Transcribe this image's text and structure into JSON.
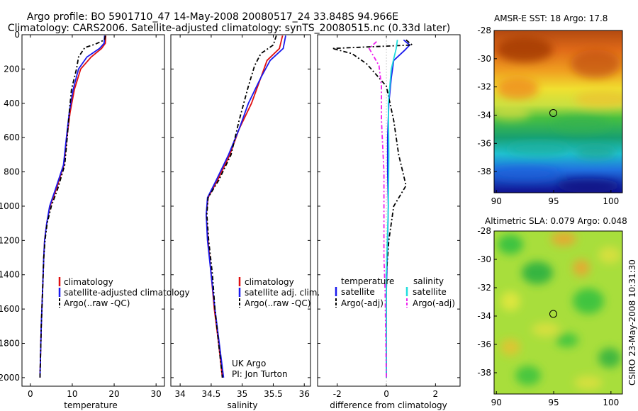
{
  "figure": {
    "title_line1": "Argo profile: BO 5901710_47 14-May-2008 20080517_24 33.848S 94.966E",
    "title_line2": "Climatology: CARS2006. Satellite-adjusted climatology: synTS_20080515.nc (0.33d later)",
    "side_label": "CSIRO 23-May-2008 10:31:30",
    "credit_line1": "UK Argo",
    "credit_line2": "PI: Jon Turton"
  },
  "colors": {
    "climatology": "#e01010",
    "satellite": "#1a1aee",
    "argo": "#000000",
    "sal_satellite": "#22dddd",
    "sal_argo": "#ee22ee"
  },
  "chart_data": [
    {
      "type": "line",
      "xlabel": "temperature",
      "ylabel": "",
      "xlim": [
        -2,
        32
      ],
      "ylim": [
        2050,
        0
      ],
      "xticks": [
        0,
        10,
        20,
        30
      ],
      "yticks": [
        0,
        200,
        400,
        600,
        800,
        1000,
        1200,
        1400,
        1600,
        1800,
        2000
      ],
      "legend": [
        "climatology",
        "satellite-adjusted climatology",
        "Argo(..raw -QC)"
      ],
      "series": [
        {
          "name": "climatology",
          "color_key": "climatology",
          "dash": "",
          "points": [
            [
              18.0,
              5
            ],
            [
              17.9,
              50
            ],
            [
              17.0,
              80
            ],
            [
              14.5,
              130
            ],
            [
              12.0,
              200
            ],
            [
              10.5,
              320
            ],
            [
              9.5,
              450
            ],
            [
              8.7,
              600
            ],
            [
              8.0,
              760
            ],
            [
              6.2,
              900
            ],
            [
              4.7,
              1000
            ],
            [
              3.9,
              1100
            ],
            [
              3.4,
              1200
            ],
            [
              3.2,
              1300
            ],
            [
              2.9,
              1500
            ],
            [
              2.6,
              1700
            ],
            [
              2.4,
              1900
            ],
            [
              2.3,
              2000
            ]
          ]
        },
        {
          "name": "satellite-adjusted climatology",
          "color_key": "satellite",
          "dash": "",
          "points": [
            [
              17.7,
              5
            ],
            [
              17.6,
              50
            ],
            [
              16.5,
              80
            ],
            [
              13.5,
              130
            ],
            [
              11.5,
              200
            ],
            [
              10.2,
              320
            ],
            [
              9.3,
              450
            ],
            [
              8.6,
              600
            ],
            [
              7.9,
              760
            ],
            [
              6.0,
              900
            ],
            [
              4.6,
              1000
            ],
            [
              3.9,
              1100
            ],
            [
              3.4,
              1200
            ],
            [
              3.2,
              1300
            ],
            [
              2.9,
              1500
            ],
            [
              2.6,
              1700
            ],
            [
              2.4,
              1900
            ],
            [
              2.3,
              2000
            ]
          ]
        },
        {
          "name": "Argo(..raw -QC)",
          "color_key": "argo",
          "dash": "6,3,2,3",
          "points": [
            [
              17.9,
              5
            ],
            [
              17.7,
              30
            ],
            [
              15.5,
              55
            ],
            [
              13.0,
              75
            ],
            [
              11.5,
              130
            ],
            [
              11.0,
              200
            ],
            [
              9.8,
              320
            ],
            [
              9.3,
              450
            ],
            [
              8.8,
              600
            ],
            [
              8.2,
              760
            ],
            [
              6.5,
              900
            ],
            [
              5.0,
              1000
            ],
            [
              4.0,
              1100
            ],
            [
              3.5,
              1200
            ],
            [
              3.2,
              1300
            ],
            [
              2.9,
              1500
            ],
            [
              2.6,
              1700
            ],
            [
              2.4,
              1900
            ],
            [
              2.3,
              2000
            ]
          ]
        }
      ]
    },
    {
      "type": "line",
      "xlabel": "salinity",
      "ylabel": "",
      "xlim": [
        33.85,
        36.1
      ],
      "ylim": [
        2050,
        0
      ],
      "xticks": [
        34,
        34.5,
        35,
        35.5,
        36
      ],
      "yticks": [],
      "legend": [
        "climatology",
        "satellite adj. clim.",
        "Argo(..raw -QC)"
      ],
      "series": [
        {
          "name": "climatology",
          "color_key": "climatology",
          "dash": "",
          "points": [
            [
              35.65,
              5
            ],
            [
              35.6,
              80
            ],
            [
              35.4,
              150
            ],
            [
              35.3,
              250
            ],
            [
              35.15,
              400
            ],
            [
              34.95,
              550
            ],
            [
              34.8,
              700
            ],
            [
              34.6,
              850
            ],
            [
              34.45,
              950
            ],
            [
              34.42,
              1050
            ],
            [
              34.45,
              1200
            ],
            [
              34.5,
              1400
            ],
            [
              34.55,
              1600
            ],
            [
              34.62,
              1800
            ],
            [
              34.68,
              2000
            ]
          ]
        },
        {
          "name": "satellite adj. clim.",
          "color_key": "satellite",
          "dash": "",
          "points": [
            [
              35.7,
              5
            ],
            [
              35.66,
              80
            ],
            [
              35.45,
              150
            ],
            [
              35.3,
              250
            ],
            [
              35.1,
              400
            ],
            [
              34.95,
              550
            ],
            [
              34.78,
              700
            ],
            [
              34.58,
              850
            ],
            [
              34.44,
              950
            ],
            [
              34.42,
              1050
            ],
            [
              34.44,
              1200
            ],
            [
              34.5,
              1400
            ],
            [
              34.56,
              1600
            ],
            [
              34.63,
              1800
            ],
            [
              34.7,
              2000
            ]
          ]
        },
        {
          "name": "Argo(..raw -QC)",
          "color_key": "argo",
          "dash": "6,3,2,3",
          "points": [
            [
              35.55,
              5
            ],
            [
              35.5,
              60
            ],
            [
              35.3,
              110
            ],
            [
              35.2,
              180
            ],
            [
              35.1,
              300
            ],
            [
              34.95,
              500
            ],
            [
              34.82,
              700
            ],
            [
              34.62,
              850
            ],
            [
              34.45,
              950
            ],
            [
              34.43,
              1050
            ],
            [
              34.46,
              1200
            ],
            [
              34.52,
              1400
            ],
            [
              34.56,
              1600
            ],
            [
              34.62,
              1800
            ],
            [
              34.68,
              2000
            ]
          ]
        }
      ]
    },
    {
      "type": "line",
      "xlabel": "difference from climatology",
      "ylabel": "",
      "xlim": [
        -2.8,
        3.0
      ],
      "ylim": [
        2050,
        0
      ],
      "xticks": [
        -2,
        0,
        2
      ],
      "yticks": [],
      "legend_headers": [
        "temperature",
        "salinity"
      ],
      "legend": [
        "satellite",
        "Argo(-adj)",
        "satellite",
        "Argo(-adj)"
      ],
      "series": [
        {
          "name": "satellite",
          "group": "temperature",
          "color_key": "satellite",
          "dash": "",
          "points": [
            [
              0.7,
              30
            ],
            [
              0.95,
              60
            ],
            [
              0.75,
              90
            ],
            [
              0.3,
              150
            ],
            [
              0.2,
              250
            ],
            [
              0.1,
              400
            ],
            [
              0.05,
              600
            ],
            [
              0.05,
              800
            ],
            [
              0.08,
              1000
            ],
            [
              0.05,
              1200
            ],
            [
              0.0,
              1500
            ],
            [
              0.0,
              1800
            ],
            [
              0.0,
              2000
            ]
          ]
        },
        {
          "name": "Argo(-adj)",
          "group": "temperature",
          "color_key": "argo",
          "dash": "6,3,2,3",
          "points": [
            [
              0.8,
              30
            ],
            [
              1.05,
              60
            ],
            [
              -2.2,
              80
            ],
            [
              -1.4,
              110
            ],
            [
              -0.8,
              170
            ],
            [
              0.0,
              300
            ],
            [
              0.3,
              500
            ],
            [
              0.5,
              700
            ],
            [
              0.8,
              880
            ],
            [
              0.3,
              1000
            ],
            [
              0.1,
              1200
            ],
            [
              0.0,
              1400
            ],
            [
              0.0,
              1600
            ],
            [
              0.0,
              2000
            ]
          ]
        },
        {
          "name": "satellite",
          "group": "salinity",
          "color_key": "sal_satellite",
          "dash": "",
          "points": [
            [
              0.45,
              30
            ],
            [
              0.4,
              80
            ],
            [
              0.2,
              200
            ],
            [
              0.08,
              400
            ],
            [
              0.1,
              700
            ],
            [
              0.08,
              1000
            ],
            [
              0.0,
              1400
            ],
            [
              0.0,
              2000
            ]
          ]
        },
        {
          "name": "Argo(-adj)",
          "group": "salinity",
          "color_key": "sal_argo",
          "dash": "6,3,2,3",
          "points": [
            [
              -0.4,
              40
            ],
            [
              -0.7,
              80
            ],
            [
              -0.3,
              180
            ],
            [
              -0.2,
              300
            ],
            [
              -0.2,
              500
            ],
            [
              -0.1,
              800
            ],
            [
              -0.1,
              1100
            ],
            [
              -0.1,
              1300
            ],
            [
              -0.05,
              1500
            ],
            [
              0.0,
              2000
            ]
          ]
        }
      ]
    },
    {
      "type": "heatmap",
      "title": "AMSR-E SST: 18 Argo: 17.8",
      "xlim": [
        89.8,
        101
      ],
      "ylim": [
        -39.5,
        -28
      ],
      "xticks": [
        90,
        95,
        100
      ],
      "yticks": [
        -28,
        -30,
        -32,
        -34,
        -36,
        -38
      ],
      "marker": {
        "lon": 94.966,
        "lat": -33.848
      }
    },
    {
      "type": "heatmap",
      "title": "Altimetric SLA: 0.079 Argo: 0.048",
      "xlim": [
        89.8,
        101
      ],
      "ylim": [
        -39.5,
        -28
      ],
      "xticks": [
        90,
        95,
        100
      ],
      "yticks": [
        -28,
        -30,
        -32,
        -34,
        -36,
        -38
      ],
      "marker": {
        "lon": 94.966,
        "lat": -33.848
      }
    }
  ]
}
